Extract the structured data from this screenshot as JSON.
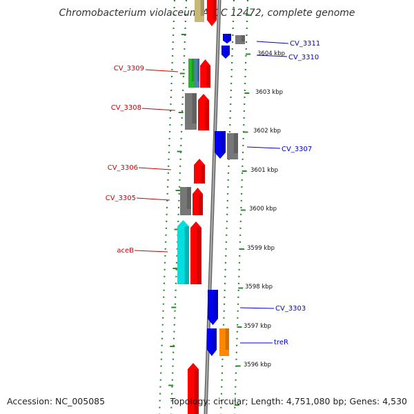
{
  "title": "Chromobacterium violaceum ATCC 12472, complete genome",
  "footer": {
    "accession": "Accession: NC_005085",
    "topology": "Topology: circular; Length: 4,751,080 bp; Genes: 4,530"
  },
  "colors": {
    "strand_minus_label": "#cc0000",
    "strand_plus_label": "#0000cc",
    "backbone": "#888888",
    "ring_dots": "#2a8a2a",
    "gene_red": "#ff0000",
    "gene_blue": "#0000ee",
    "gene_gray": "#777777",
    "gene_green": "#22bb22",
    "gene_steelblue": "#4f7fb0",
    "gene_cyan": "#00e0e0",
    "gene_orange": "#ff8800",
    "gene_khaki": "#c8b878"
  },
  "kbp_ticks": [
    {
      "label": "3604 kbp"
    },
    {
      "label": "3603 kbp"
    },
    {
      "label": "3602 kbp"
    },
    {
      "label": "3601 kbp"
    },
    {
      "label": "3600 kbp"
    },
    {
      "label": "3599 kbp"
    },
    {
      "label": "3598 kbp"
    },
    {
      "label": "3597 kbp"
    },
    {
      "label": "3596 kbp"
    }
  ],
  "gene_labels": [
    {
      "text": "CV_3311",
      "strand": "plus"
    },
    {
      "text": "CV_3310",
      "strand": "plus"
    },
    {
      "text": "CV_3309",
      "strand": "minus"
    },
    {
      "text": "CV_3308",
      "strand": "minus"
    },
    {
      "text": "CV_3307",
      "strand": "plus"
    },
    {
      "text": "CV_3306",
      "strand": "minus"
    },
    {
      "text": "CV_3305",
      "strand": "minus"
    },
    {
      "text": "aceB",
      "strand": "minus"
    },
    {
      "text": "CV_3303",
      "strand": "plus"
    },
    {
      "text": "treR",
      "strand": "plus"
    }
  ]
}
